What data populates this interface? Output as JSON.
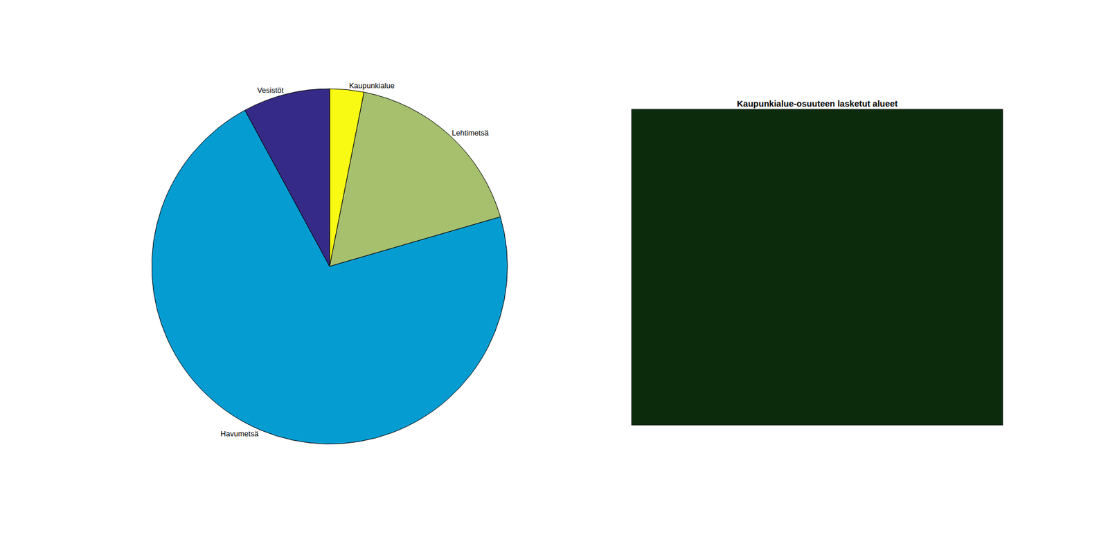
{
  "chart_data": [
    {
      "type": "pie",
      "categories": [
        "Kaupunkialue",
        "Lehtimetsä",
        "Havumetsä",
        "Vesistöt"
      ],
      "values": [
        3.1,
        17.4,
        71.6,
        7.9
      ],
      "colors": [
        "#f8fa14",
        "#a6c06e",
        "#059cd2",
        "#352a87"
      ]
    },
    {
      "type": "image",
      "title": "Kaupunkialue-osuuteen lasketut alueet",
      "color": "#0c2a0c",
      "tick_labels": false
    }
  ]
}
